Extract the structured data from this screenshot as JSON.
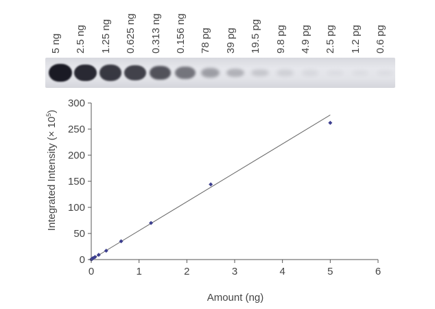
{
  "lanes": [
    {
      "label": "5 ng",
      "intensity": 1.0
    },
    {
      "label": "2.5 ng",
      "intensity": 0.92
    },
    {
      "label": "1.25 ng",
      "intensity": 0.85
    },
    {
      "label": "0.625 ng",
      "intensity": 0.8
    },
    {
      "label": "0.313 ng",
      "intensity": 0.72
    },
    {
      "label": "0.156 ng",
      "intensity": 0.55
    },
    {
      "label": "78 pg",
      "intensity": 0.35
    },
    {
      "label": "39 pg",
      "intensity": 0.25
    },
    {
      "label": "19.5 pg",
      "intensity": 0.15
    },
    {
      "label": "9.8 pg",
      "intensity": 0.1
    },
    {
      "label": "4.9 pg",
      "intensity": 0.06
    },
    {
      "label": "2.5 pg",
      "intensity": 0.04
    },
    {
      "label": "1.2 pg",
      "intensity": 0.03
    },
    {
      "label": "0.6 pg",
      "intensity": 0.02
    }
  ],
  "colors": {
    "band": "#1a1a24",
    "point": "#3d3f8f",
    "line": "#666666",
    "axis": "#555555"
  },
  "chart_data": {
    "type": "scatter",
    "xlabel": "Amount (ng)",
    "ylabel": "Integrated Intensity (× 10",
    "ylabel_exponent": "5",
    "ylabel_close": ")",
    "xlim": [
      0,
      6
    ],
    "ylim": [
      0,
      300
    ],
    "xticks": [
      0,
      1,
      2,
      3,
      4,
      5,
      6
    ],
    "yticks": [
      0,
      50,
      100,
      150,
      200,
      250,
      300
    ],
    "grid": false,
    "points": [
      {
        "x": 0.0006,
        "y": 0.1
      },
      {
        "x": 0.0012,
        "y": 0.2
      },
      {
        "x": 0.0025,
        "y": 0.3
      },
      {
        "x": 0.0049,
        "y": 0.5
      },
      {
        "x": 0.0098,
        "y": 0.9
      },
      {
        "x": 0.0195,
        "y": 1.5
      },
      {
        "x": 0.039,
        "y": 2.8
      },
      {
        "x": 0.078,
        "y": 5
      },
      {
        "x": 0.156,
        "y": 9
      },
      {
        "x": 0.313,
        "y": 17
      },
      {
        "x": 0.625,
        "y": 35
      },
      {
        "x": 1.25,
        "y": 70
      },
      {
        "x": 2.5,
        "y": 144
      },
      {
        "x": 5,
        "y": 262
      }
    ],
    "trendline": {
      "x": [
        0,
        5
      ],
      "y": [
        0,
        277
      ]
    }
  }
}
